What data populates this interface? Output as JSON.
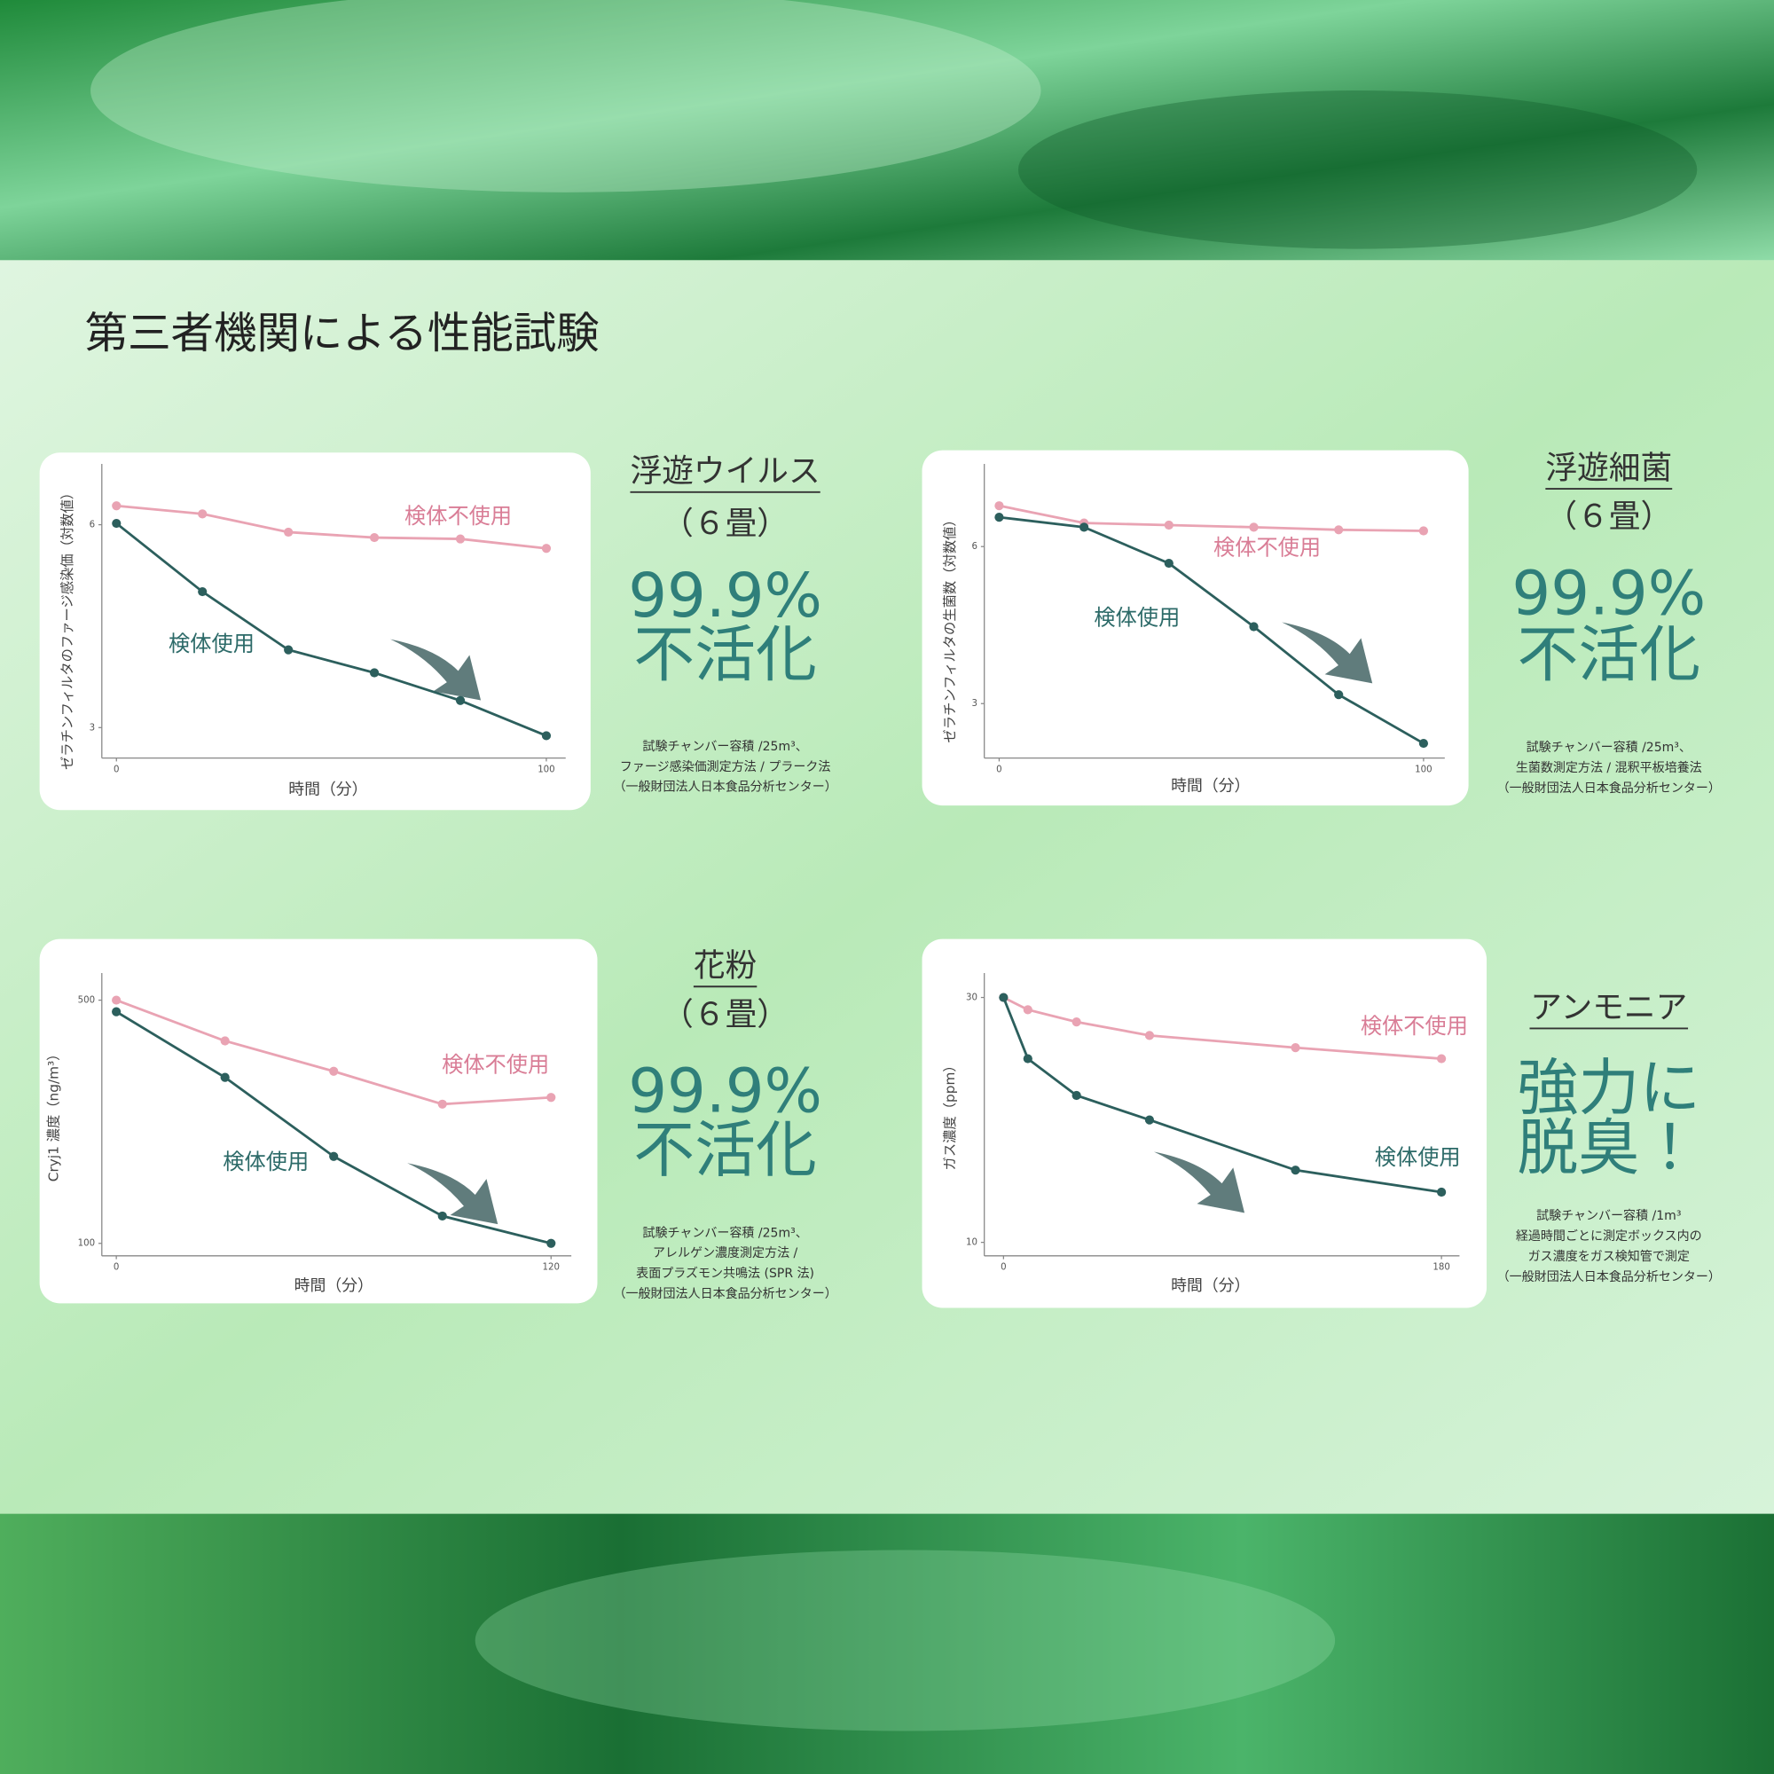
{
  "page_title": "第三者機関による性能試験",
  "chart_data": [
    {
      "type": "line",
      "heading": "浮遊ウイルス",
      "subheading": "（６畳）",
      "result": [
        "99.9%",
        "不活化"
      ],
      "notes": [
        "試験チャンバー容積 /25m³、",
        "ファージ感染価測定方法 / プラーク法",
        "（一般財団法人日本食品分析センター）"
      ],
      "xlabel": "時間（分）",
      "ylabel": "ゼラチンフィルタのファージ感染価（対数値）",
      "x": [
        0,
        20,
        40,
        60,
        80,
        100
      ],
      "xlim": [
        -3.4,
        104.5
      ],
      "xticks": [
        0,
        100
      ],
      "ylim": [
        2.55,
        6.9
      ],
      "yticks": [
        3,
        6
      ],
      "series": [
        {
          "name": "検体不使用",
          "color": "#e9a3b3",
          "values": [
            6.28,
            6.16,
            5.89,
            5.81,
            5.79,
            5.65
          ]
        },
        {
          "name": "検体使用",
          "color": "#2c5f5d",
          "values": [
            6.02,
            5.01,
            4.15,
            3.81,
            3.4,
            2.88
          ]
        }
      ]
    },
    {
      "type": "line",
      "heading": "浮遊細菌",
      "subheading": "（６畳）",
      "result": [
        "99.9%",
        "不活化"
      ],
      "notes": [
        "試験チャンバー容積 /25m³、",
        "生菌数測定方法 / 混釈平板培養法",
        "（一般財団法人日本食品分析センター）"
      ],
      "xlabel": "時間（分）",
      "ylabel": "ゼラチンフィルタの生菌数（対数値）",
      "x": [
        0,
        20,
        40,
        60,
        80,
        100
      ],
      "xlim": [
        -3.5,
        105
      ],
      "xticks": [
        0,
        100
      ],
      "ylim": [
        1.96,
        7.58
      ],
      "yticks": [
        3,
        6
      ],
      "series": [
        {
          "name": "検体不使用",
          "color": "#e9a3b3",
          "values": [
            6.78,
            6.45,
            6.41,
            6.37,
            6.32,
            6.3
          ]
        },
        {
          "name": "検体使用",
          "color": "#2c5f5d",
          "values": [
            6.56,
            6.37,
            5.68,
            4.47,
            3.17,
            2.24
          ]
        }
      ]
    },
    {
      "type": "line",
      "heading": "花粉",
      "subheading": "（６畳）",
      "result": [
        "99.9%",
        "不活化"
      ],
      "notes": [
        "試験チャンバー容積 /25m³、",
        "アレルゲン濃度測定方法 /",
        "表面プラズモン共鳴法 (SPR 法)",
        "（一般財団法人日本食品分析センター）"
      ],
      "xlabel": "時間（分）",
      "ylabel": "Cryj1 濃度（ng/m³）",
      "x": [
        0,
        30,
        60,
        90,
        120
      ],
      "xlim": [
        -4,
        125.6
      ],
      "xticks": [
        0,
        120
      ],
      "ylim": [
        79.5,
        544.7
      ],
      "yticks": [
        100,
        500
      ],
      "series": [
        {
          "name": "検体不使用",
          "color": "#e9a3b3",
          "values": [
            500,
            433,
            383,
            329,
            340
          ]
        },
        {
          "name": "検体使用",
          "color": "#2c5f5d",
          "values": [
            481,
            373,
            243,
            145,
            100
          ]
        }
      ]
    },
    {
      "type": "line",
      "heading": "アンモニア",
      "result": [
        "強力に",
        "脱臭！"
      ],
      "notes": [
        "試験チャンバー容積 /1m³",
        "経過時間ごとに測定ボックス内の",
        "ガス濃度をガス検知管で測定",
        "（一般財団法人日本食品分析センター）"
      ],
      "xlabel": "時間（分）",
      "ylabel": "ガス濃度（ppm）",
      "x": [
        0,
        10,
        30,
        60,
        120,
        180
      ],
      "xlim": [
        -7.9,
        187.4
      ],
      "xticks": [
        0,
        180
      ],
      "ylim": [
        8.9,
        32
      ],
      "yticks": [
        10,
        30
      ],
      "series": [
        {
          "name": "検体不使用",
          "color": "#e9a3b3",
          "values": [
            30,
            29,
            28,
            26.9,
            25.9,
            25
          ]
        },
        {
          "name": "検体使用",
          "color": "#2c5f5d",
          "values": [
            30,
            25,
            22,
            20,
            15.9,
            14.1
          ]
        }
      ]
    }
  ]
}
